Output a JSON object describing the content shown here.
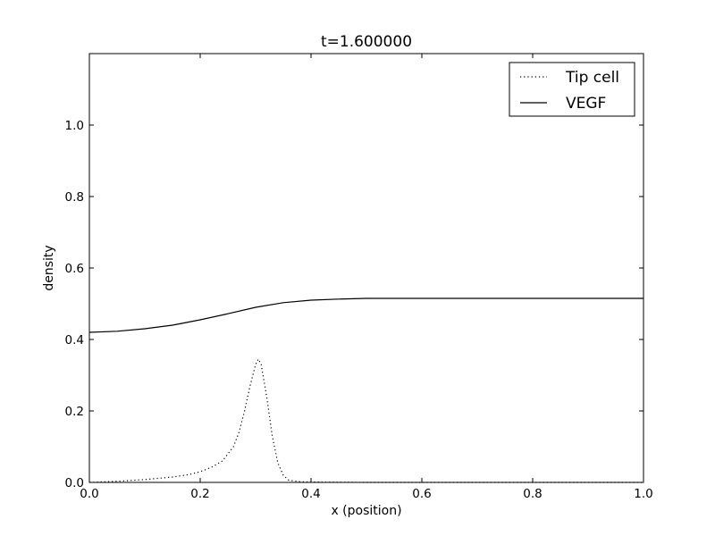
{
  "chart_data": {
    "type": "line",
    "title": "t=1.600000",
    "xlabel": "x (position)",
    "ylabel": "density",
    "xlim": [
      0.0,
      1.0
    ],
    "ylim": [
      0.0,
      1.2
    ],
    "xticks": [
      "0.0",
      "0.2",
      "0.4",
      "0.6",
      "0.8",
      "1.0"
    ],
    "yticks": [
      "0.0",
      "0.2",
      "0.4",
      "0.6",
      "0.8",
      "1.0"
    ],
    "grid": false,
    "legend_position": "top-right",
    "series": [
      {
        "name": "Tip cell",
        "style": "dotted",
        "color": "#000000",
        "x": [
          0.0,
          0.05,
          0.1,
          0.15,
          0.18,
          0.2,
          0.22,
          0.24,
          0.26,
          0.27,
          0.28,
          0.29,
          0.3,
          0.305,
          0.31,
          0.32,
          0.33,
          0.34,
          0.35,
          0.36,
          0.38,
          0.4,
          0.5,
          0.6,
          0.7,
          0.8,
          0.9,
          1.0
        ],
        "y": [
          0.0,
          0.003,
          0.008,
          0.015,
          0.022,
          0.03,
          0.042,
          0.06,
          0.1,
          0.14,
          0.2,
          0.27,
          0.33,
          0.345,
          0.33,
          0.24,
          0.13,
          0.055,
          0.02,
          0.006,
          0.002,
          0.001,
          0.0,
          0.0,
          0.0,
          0.0,
          0.0,
          0.0
        ]
      },
      {
        "name": "VEGF",
        "style": "solid",
        "color": "#000000",
        "x": [
          0.0,
          0.05,
          0.1,
          0.15,
          0.2,
          0.25,
          0.3,
          0.35,
          0.4,
          0.45,
          0.5,
          0.6,
          0.7,
          0.8,
          0.9,
          1.0
        ],
        "y": [
          0.42,
          0.423,
          0.43,
          0.44,
          0.455,
          0.472,
          0.49,
          0.503,
          0.51,
          0.513,
          0.515,
          0.515,
          0.515,
          0.515,
          0.515,
          0.515
        ]
      }
    ]
  }
}
